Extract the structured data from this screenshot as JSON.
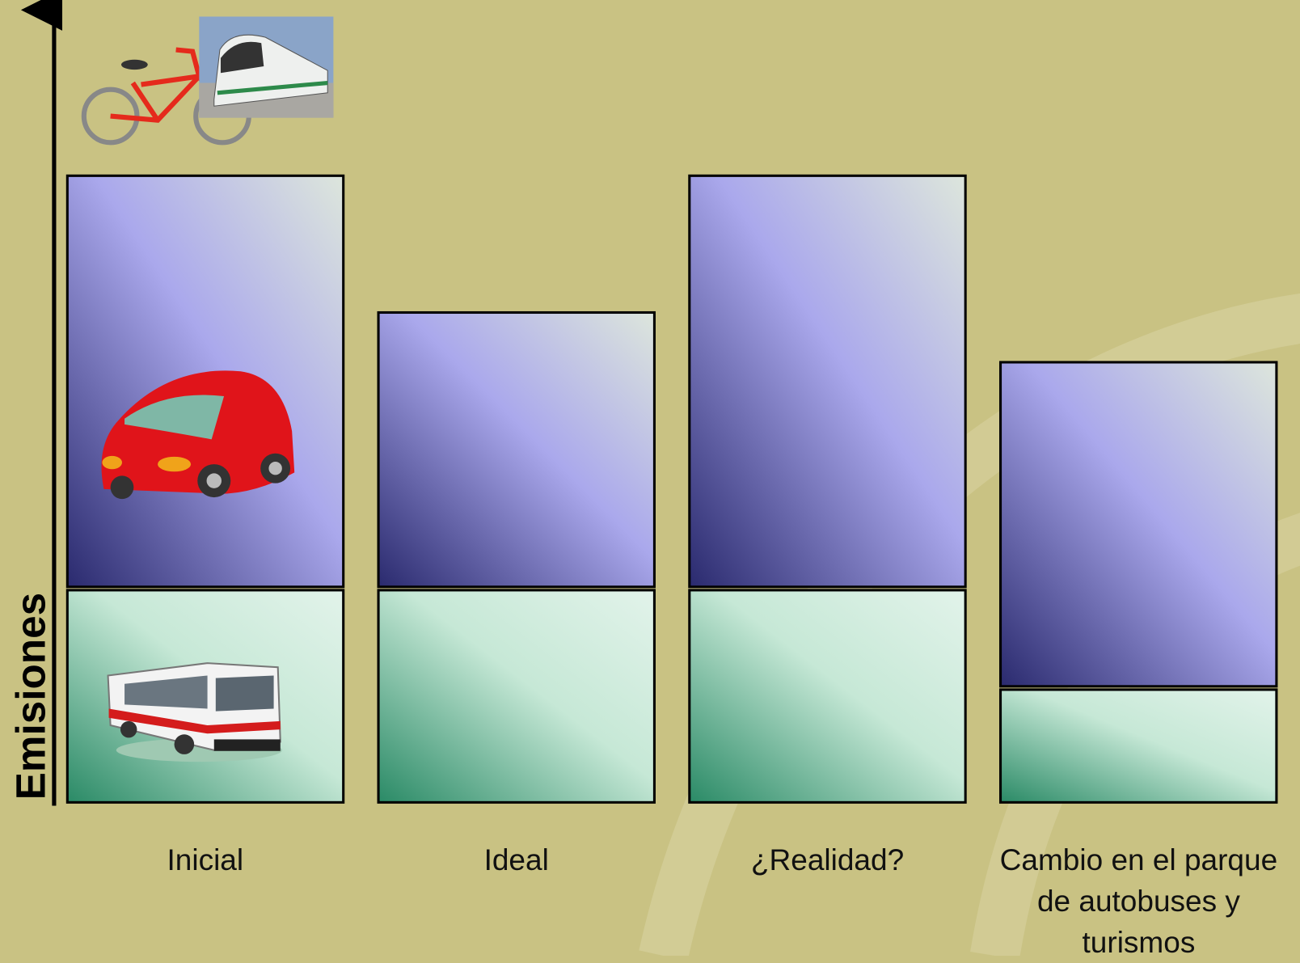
{
  "chart_data": {
    "type": "bar",
    "stacked": true,
    "y_label": "Emisiones",
    "categories": [
      "Inicial",
      "Ideal",
      "¿Realidad?",
      "Cambio en el parque de autobuses y turismos"
    ],
    "series": [
      {
        "color": "#2a8a66",
        "values": [
          26,
          26,
          26,
          14
        ]
      },
      {
        "color": "#2a2a6e",
        "values": [
          50,
          33.5,
          50,
          39.5
        ]
      }
    ],
    "ylim": [
      0,
      96
    ]
  }
}
